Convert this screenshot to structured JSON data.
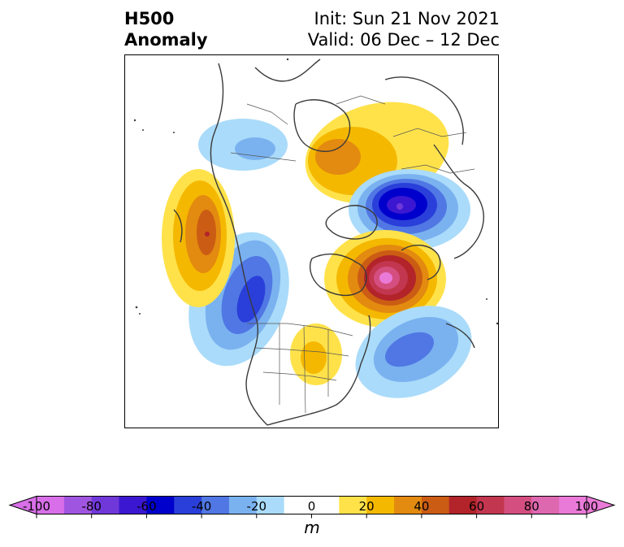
{
  "title": {
    "left_line1": "H500",
    "left_line2": "Anomaly",
    "right_line1": "Init: Sun 21 Nov 2021",
    "right_line2": "Valid: 06 Dec – 12 Dec"
  },
  "colorbar": {
    "unit": "m",
    "min": -100,
    "max": 100,
    "ticks": [
      "-100",
      "-80",
      "-60",
      "-40",
      "-20",
      "0",
      "20",
      "40",
      "60",
      "80",
      "100"
    ],
    "tick_values": [
      -100,
      -80,
      -60,
      -40,
      -20,
      0,
      20,
      40,
      60,
      80,
      100
    ],
    "levels": [
      -100,
      -90,
      -80,
      -70,
      -60,
      -50,
      -40,
      -30,
      -20,
      -10,
      10,
      20,
      30,
      40,
      50,
      60,
      70,
      80,
      90,
      100
    ],
    "colors": [
      "#d86fe8",
      "#a055e0",
      "#7038d8",
      "#3c17d2",
      "#0000cc",
      "#2a3fd9",
      "#5077e4",
      "#7ab2f0",
      "#aadbfa",
      "#ffffff",
      "#ffe24a",
      "#f5b800",
      "#e38a10",
      "#cb5c14",
      "#b2242a",
      "#c2364f",
      "#d44f80",
      "#de68b0",
      "#ea7ad8"
    ],
    "under_color": "#d86fe8",
    "over_color": "#ea7ad8"
  },
  "map": {
    "projection": "polar-stereographic",
    "region": "Northern Hemisphere"
  }
}
